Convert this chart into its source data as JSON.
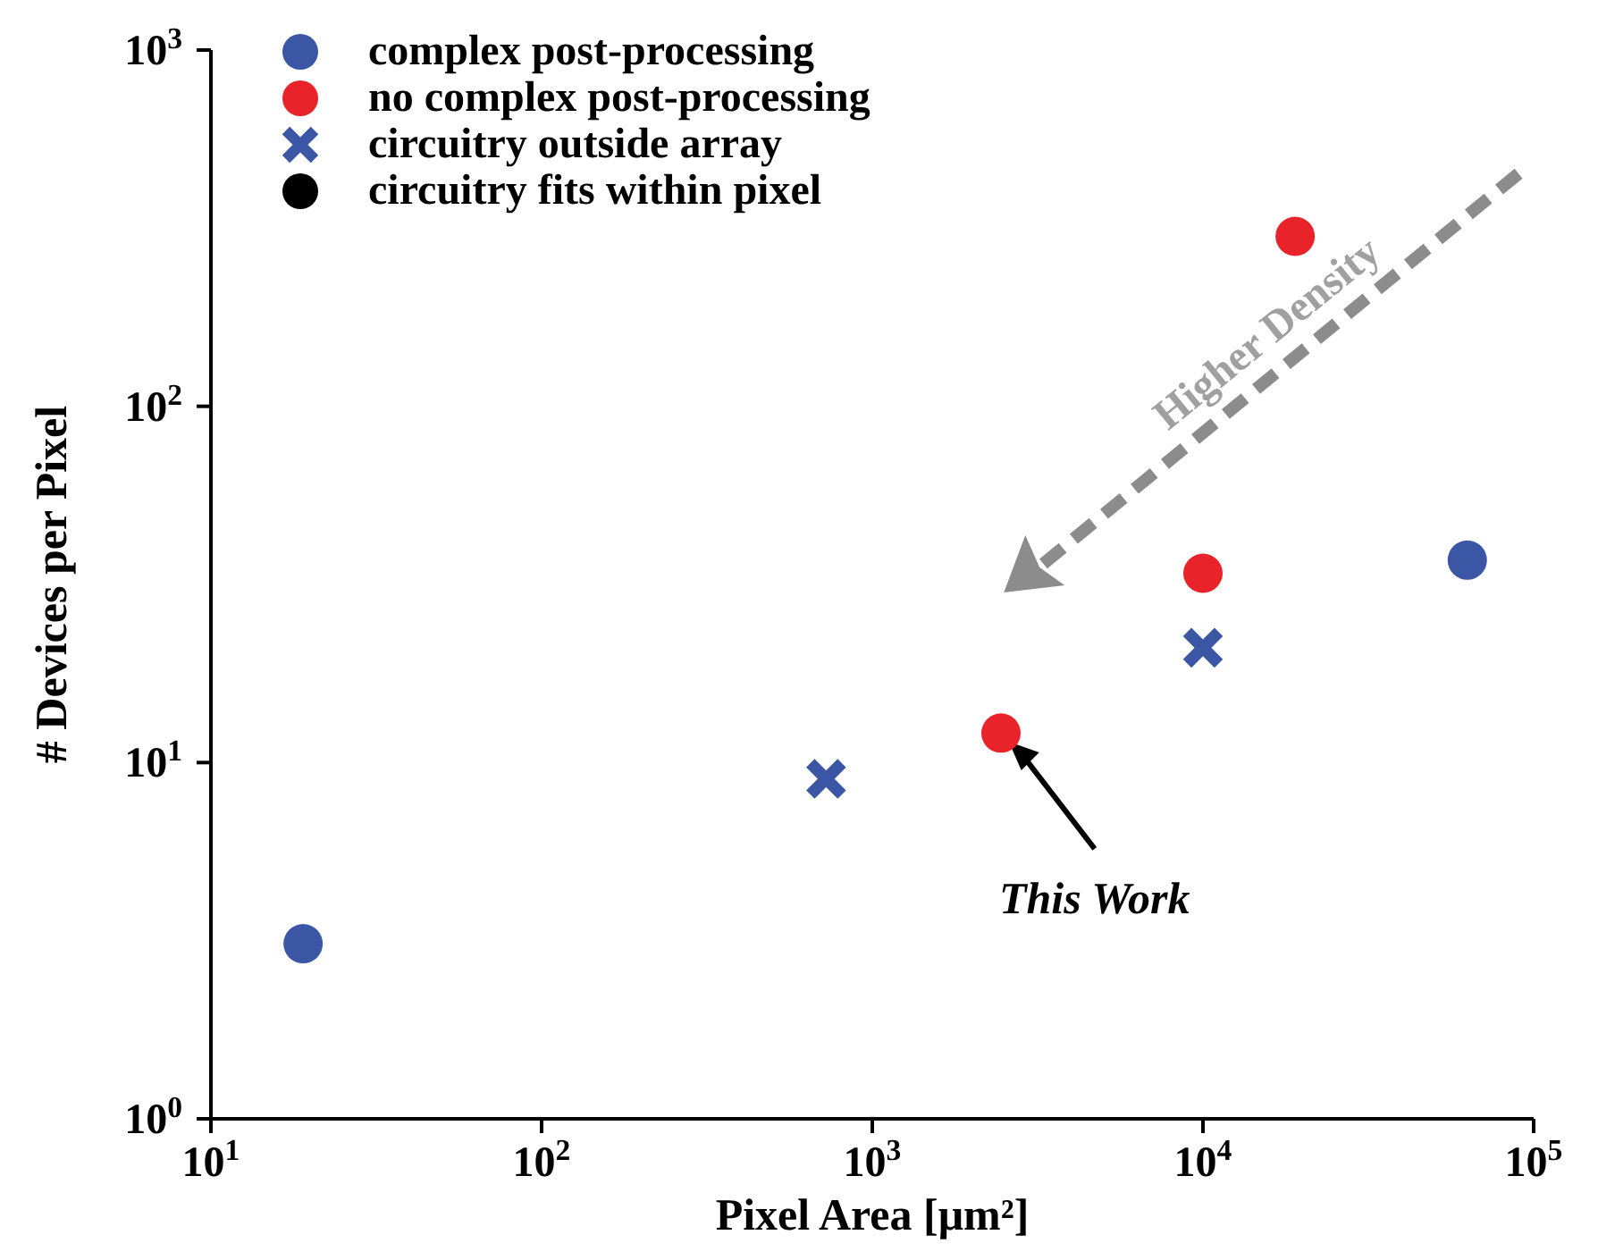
{
  "chart_data": {
    "type": "scatter",
    "xlabel": "Pixel Area [μm²]",
    "ylabel": "# Devices per Pixel",
    "log": "xy",
    "grid": false,
    "legend": "top left",
    "xlim": [
      10,
      100000
    ],
    "xticks": [
      {
        "value": 10,
        "label": "10$^{1}$"
      },
      {
        "value": 100,
        "label": "10$^{2}$"
      },
      {
        "value": 1000,
        "label": "10$^{3}$"
      },
      {
        "value": 10000,
        "label": "10$^{4}$"
      },
      {
        "value": 100000,
        "label": "10$^{5}$"
      }
    ],
    "ylim": [
      1,
      1000
    ],
    "yticks": [
      {
        "value": 1,
        "label": "10$^{0}$"
      },
      {
        "value": 10,
        "label": "10$^{1}$"
      },
      {
        "value": 100,
        "label": "10$^{2}$"
      },
      {
        "value": 1000,
        "label": "10$^{3}$"
      }
    ],
    "series": [
      {
        "name": "complex post-processing",
        "color": "#3a56a5",
        "marker": "circle",
        "x": [
          19,
          63000
        ],
        "values": [
          3.1,
          37
        ]
      },
      {
        "name": "no complex post-processing",
        "color": "#e8232a",
        "marker": "circle",
        "x": [
          2450,
          10000,
          19000
        ],
        "values": [
          12.1,
          34,
          300
        ]
      },
      {
        "name": "circuitry outside array",
        "color": "#3a56a5",
        "marker": "cross",
        "x": [
          725,
          10000
        ],
        "values": [
          9,
          21
        ]
      }
    ],
    "annotations": [
      "This Work",
      "Higher Density",
      "circuitry fits within pixel"
    ]
  }
}
